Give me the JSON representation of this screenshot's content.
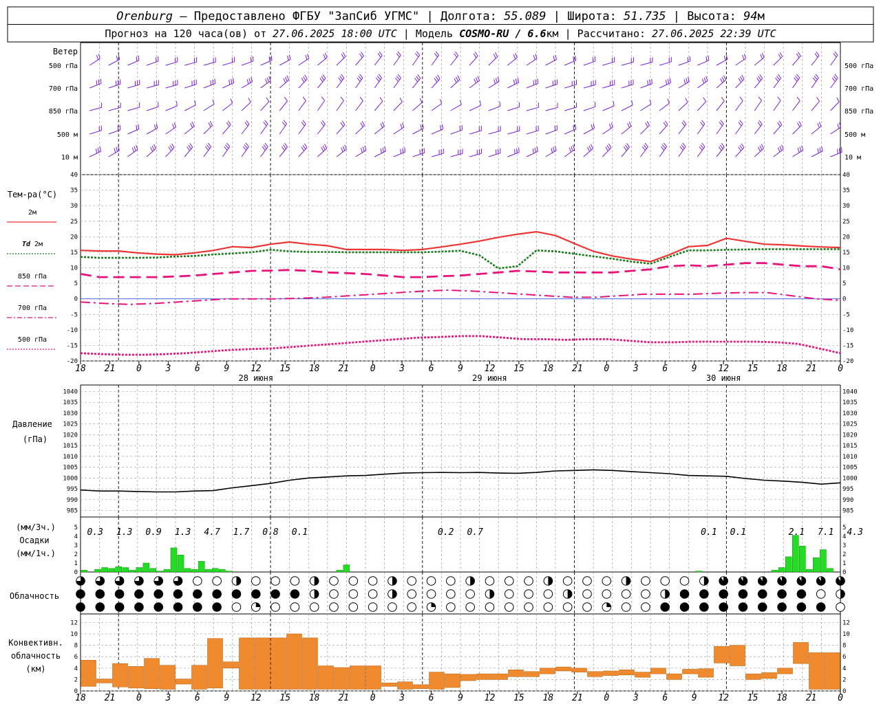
{
  "header": {
    "station": "Orenburg",
    "line1_rest": " — Предоставлено ФГБУ \"ЗапСиб УГМС\" | Долгота: ",
    "lon": "55.089",
    "lat_label": " | Широта: ",
    "lat": "51.735",
    "alt_label": " | Высота: ",
    "alt": "94",
    "alt_unit": "м",
    "fc_label": "Прогноз на 120 часа(ов) от ",
    "fc_time": "27.06.2025 18:00 UTC",
    "model_label": " | Модель ",
    "model": "COSMO-RU / 6.6",
    "model_unit": "км",
    "calc_label": " | Рассчитано: ",
    "calc_time": "27.06.2025 22:39 UTC"
  },
  "colors": {
    "wind": "#7a1fd6",
    "t2m": "#ee3333",
    "td2m": "#1a7a1a",
    "level": "#e8137a",
    "pressure": "#000000",
    "precip": "#22dd22",
    "convective": "#f08a2e",
    "grid": "#999999"
  },
  "wind_panel": {
    "title": "Ветер",
    "levels": [
      "500 гПа",
      "700 гПа",
      "850 гПа",
      "500 м",
      "10 м"
    ]
  },
  "temp_panel": {
    "title": "Тем-ра(°C)",
    "legend": [
      {
        "label": "2м",
        "key": "t2m"
      },
      {
        "label_italic": "Td",
        "label": "2м",
        "key": "td2m"
      },
      {
        "label": "850 гПа",
        "key": "t850"
      },
      {
        "label": "700 гПа",
        "key": "t700"
      },
      {
        "label": "500 гПа",
        "key": "t500"
      }
    ],
    "ticks": [
      40,
      35,
      30,
      25,
      20,
      15,
      10,
      5,
      0,
      -5,
      -10,
      -15,
      -20
    ]
  },
  "time_axis": {
    "hour_labels": [
      "18",
      "21",
      "0",
      "3",
      "6",
      "9",
      "12",
      "15",
      "18",
      "21",
      "0",
      "3",
      "6",
      "9",
      "12",
      "15",
      "18",
      "21",
      "0",
      "3",
      "6",
      "9",
      "12",
      "15",
      "18",
      "21",
      "0"
    ],
    "day_labels": [
      {
        "text": "28 июня",
        "index": 6
      },
      {
        "text": "29 июня",
        "index": 14
      },
      {
        "text": "30 июня",
        "index": 22
      }
    ]
  },
  "pressure_panel": {
    "title1": "Давление",
    "title2": "(гПа)",
    "ticks": [
      1040,
      1035,
      1030,
      1025,
      1020,
      1015,
      1010,
      1005,
      1000,
      995,
      990,
      985
    ]
  },
  "precip_panel": {
    "title1": "(мм/3ч.)",
    "title2": "Осадки",
    "title3": "(мм/1ч.)",
    "ticks": [
      5,
      4,
      3,
      2,
      1,
      0
    ],
    "three_hour_labels": [
      {
        "text": "0.3",
        "index": 0
      },
      {
        "text": "1.3",
        "index": 1
      },
      {
        "text": "0.9",
        "index": 2
      },
      {
        "text": "1.3",
        "index": 3
      },
      {
        "text": "4.7",
        "index": 4
      },
      {
        "text": "1.7",
        "index": 5
      },
      {
        "text": "0.8",
        "index": 6
      },
      {
        "text": "0.1",
        "index": 7
      },
      {
        "text": "0.2",
        "index": 12
      },
      {
        "text": "0.7",
        "index": 13
      },
      {
        "text": "0.1",
        "index": 21
      },
      {
        "text": "0.1",
        "index": 22
      },
      {
        "text": "2.1",
        "index": 24
      },
      {
        "text": "7.1",
        "index": 25
      },
      {
        "text": "4.3",
        "index": 26
      }
    ]
  },
  "cloud_panel": {
    "title": "Облачность"
  },
  "conv_panel": {
    "title1": "Конвективн.",
    "title2": "облачность",
    "title3": "(км)",
    "ticks": [
      12,
      10,
      8,
      6,
      4,
      2,
      0
    ]
  },
  "chart_data": [
    {
      "type": "line",
      "name": "temperature",
      "x_hours": [
        0,
        3,
        6,
        9,
        12,
        15,
        18,
        21,
        24,
        27,
        30,
        33,
        36,
        39,
        42,
        45,
        48,
        51,
        54,
        57,
        60,
        63,
        66,
        69,
        72,
        75,
        78,
        81,
        84,
        87,
        90,
        93,
        96,
        99,
        102,
        105,
        108,
        111,
        114,
        117,
        120
      ],
      "ylim": [
        -20,
        40
      ],
      "series": [
        {
          "key": "t2m",
          "values": [
            15.6,
            15.4,
            15.4,
            14.8,
            14.4,
            14.2,
            14.8,
            15.6,
            16.8,
            16.5,
            17.6,
            18.3,
            17.6,
            17.1,
            15.9,
            15.9,
            15.9,
            15.6,
            15.9,
            16.7,
            17.6,
            18.6,
            19.8,
            20.8,
            21.6,
            20.4,
            17.8,
            15.3,
            13.8,
            12.8,
            12.0,
            14.2,
            16.8,
            17.2,
            19.5,
            18.5,
            17.6,
            17.4,
            17.0,
            16.7,
            16.5
          ]
        },
        {
          "key": "td2m",
          "values": [
            13.5,
            13.2,
            13.2,
            13.2,
            13.3,
            13.6,
            13.8,
            14.3,
            14.6,
            15.0,
            15.8,
            15.3,
            15.1,
            15.1,
            15.0,
            15.0,
            15.0,
            15.0,
            15.0,
            15.2,
            15.5,
            14.0,
            9.8,
            10.5,
            15.6,
            15.3,
            14.5,
            13.7,
            12.9,
            12.0,
            11.3,
            13.5,
            15.6,
            15.6,
            15.8,
            15.9,
            16.0,
            16.0,
            16.0,
            16.0,
            16.0
          ]
        },
        {
          "key": "t850",
          "values": [
            8.0,
            7.0,
            7.0,
            7.0,
            7.0,
            7.2,
            7.5,
            8.0,
            8.5,
            9.0,
            9.1,
            9.3,
            9.0,
            8.5,
            8.3,
            8.0,
            7.5,
            7.0,
            7.0,
            7.3,
            7.5,
            8.0,
            8.5,
            9.0,
            8.8,
            8.5,
            8.5,
            8.5,
            8.5,
            9.0,
            9.5,
            10.5,
            10.8,
            10.5,
            11.0,
            11.5,
            11.5,
            11.0,
            10.5,
            10.5,
            9.5
          ]
        },
        {
          "key": "t700",
          "values": [
            -1.0,
            -1.5,
            -1.8,
            -1.5,
            -1.0,
            -0.5,
            0.0,
            0.0,
            0.0,
            0.2,
            0.5,
            1.0,
            1.5,
            2.0,
            2.5,
            2.8,
            2.5,
            2.0,
            1.5,
            1.0,
            0.5,
            0.5,
            1.0,
            1.5,
            1.5,
            1.5,
            1.8,
            2.0,
            2.0,
            1.0,
            0.0,
            -0.5
          ]
        },
        {
          "key": "t500",
          "values": [
            -17.5,
            -17.8,
            -18.0,
            -18.0,
            -17.8,
            -17.5,
            -17.0,
            -16.5,
            -16.2,
            -16.0,
            -15.5,
            -15.0,
            -14.5,
            -14.0,
            -13.5,
            -13.0,
            -12.5,
            -12.3,
            -12.0,
            -12.0,
            -12.5,
            -13.0,
            -13.0,
            -13.2,
            -13.0,
            -13.0,
            -13.5,
            -14.0,
            -14.0,
            -13.8,
            -13.8,
            -13.8,
            -13.8,
            -14.0,
            -14.5,
            -16.0,
            -17.5
          ]
        }
      ]
    },
    {
      "type": "line",
      "name": "pressure",
      "ylabel": "(гПа)",
      "ylim": [
        985,
        1040
      ],
      "x_hours": [
        0,
        3,
        6,
        9,
        12,
        15,
        18,
        21,
        24,
        27,
        30,
        33,
        36,
        39,
        42,
        45,
        48,
        51,
        54,
        57,
        60,
        63,
        66,
        69,
        72,
        75,
        78,
        81,
        84,
        87,
        90,
        93,
        96,
        99,
        102,
        105,
        108,
        111,
        114,
        117,
        120
      ],
      "values": [
        994.5,
        994.0,
        994.0,
        993.8,
        993.6,
        993.6,
        994.0,
        994.2,
        995.5,
        996.5,
        997.5,
        999.0,
        1000.0,
        1000.5,
        1001.0,
        1001.2,
        1001.8,
        1002.3,
        1002.5,
        1002.6,
        1002.5,
        1002.6,
        1002.3,
        1002.2,
        1002.6,
        1003.3,
        1003.5,
        1003.8,
        1003.5,
        1003.0,
        1002.5,
        1002.0,
        1001.2,
        1001.0,
        1000.8,
        999.8,
        999.0,
        998.6,
        998.0,
        997.2,
        997.8
      ]
    },
    {
      "type": "bar",
      "name": "precipitation_1h",
      "ylim": [
        0,
        5
      ],
      "values": [
        0.2,
        0,
        0.3,
        0.5,
        0.4,
        0.6,
        0.5,
        0.2,
        0.5,
        1.0,
        0.4,
        0.1,
        0.3,
        2.7,
        1.9,
        0.4,
        0.3,
        1.2,
        0.3,
        0.4,
        0.3,
        0.1,
        0,
        0,
        0,
        0,
        0,
        0,
        0,
        0,
        0,
        0,
        0,
        0,
        0,
        0,
        0,
        0.2,
        0.8,
        0,
        0,
        0,
        0,
        0,
        0,
        0,
        0,
        0,
        0,
        0,
        0,
        0,
        0,
        0,
        0,
        0,
        0,
        0,
        0,
        0,
        0,
        0,
        0,
        0,
        0,
        0,
        0,
        0,
        0,
        0,
        0,
        0,
        0,
        0,
        0,
        0,
        0,
        0,
        0,
        0,
        0,
        0,
        0,
        0,
        0,
        0,
        0,
        0,
        0,
        0.1,
        0,
        0,
        0,
        0,
        0,
        0,
        0,
        0,
        0,
        0,
        0.2,
        0.5,
        1.7,
        4.1,
        2.9,
        0.3,
        1.6,
        2.5,
        0.4,
        0
      ]
    },
    {
      "type": "bar",
      "name": "convective_cloud",
      "ylim": [
        0,
        13
      ],
      "bars": [
        [
          0.8,
          5.4
        ],
        [
          1.4,
          2.1
        ],
        [
          0.7,
          4.8
        ],
        [
          0.5,
          4.3
        ],
        [
          0.4,
          5.7
        ],
        [
          0.3,
          4.5
        ],
        [
          1.2,
          2.1
        ],
        [
          0.3,
          4.5
        ],
        [
          0.5,
          9.2
        ],
        [
          4.0,
          5.1
        ],
        [
          0.3,
          9.3
        ],
        [
          0.3,
          9.3
        ],
        [
          0.3,
          9.3
        ],
        [
          0.3,
          10.0
        ],
        [
          0.3,
          9.3
        ],
        [
          0.3,
          4.4
        ],
        [
          0.3,
          4.1
        ],
        [
          0.3,
          4.4
        ],
        [
          0.3,
          4.4
        ],
        [
          0.8,
          1.4
        ],
        [
          0.3,
          1.6
        ],
        [
          0.4,
          1.1
        ],
        [
          0.3,
          3.3
        ],
        [
          0.6,
          3.0
        ],
        [
          1.8,
          2.9
        ],
        [
          2.0,
          3.0
        ],
        [
          2.0,
          3.0
        ],
        [
          2.5,
          3.7
        ],
        [
          2.5,
          3.4
        ],
        [
          3.0,
          4.0
        ],
        [
          3.5,
          4.2
        ],
        [
          3.3,
          4.0
        ],
        [
          2.5,
          3.4
        ],
        [
          2.7,
          3.5
        ],
        [
          2.8,
          3.7
        ],
        [
          2.4,
          3.3
        ],
        [
          3.0,
          4.0
        ],
        [
          2.0,
          3.0
        ],
        [
          3.0,
          3.8
        ],
        [
          2.4,
          3.9
        ],
        [
          4.9,
          7.8
        ],
        [
          4.4,
          8.0
        ],
        [
          2.0,
          3.0
        ],
        [
          2.2,
          3.2
        ],
        [
          3.0,
          4.0
        ],
        [
          4.8,
          8.5
        ],
        [
          0.3,
          6.7
        ],
        [
          0.3,
          6.7
        ]
      ]
    }
  ]
}
